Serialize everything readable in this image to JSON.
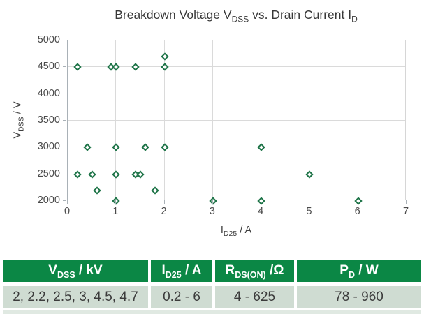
{
  "title": {
    "part1": "Breakdown Voltage V",
    "sub1": "DSS",
    "part2": " vs. Drain Current I",
    "sub2": "D"
  },
  "axes": {
    "y_label": {
      "pre": "V",
      "sub": "DSS",
      "post": " / V"
    },
    "x_label": {
      "pre": "I",
      "sub": "D25",
      "post": " / A"
    }
  },
  "chart_data": {
    "type": "scatter",
    "title": "Breakdown Voltage V_DSS vs. Drain Current I_D",
    "xlabel": "I_D25 / A",
    "ylabel": "V_DSS / V",
    "xlim": [
      0,
      7
    ],
    "ylim": [
      2000,
      5000
    ],
    "xticks": [
      0,
      1,
      2,
      3,
      4,
      5,
      6,
      7
    ],
    "yticks": [
      2000,
      2500,
      3000,
      3500,
      4000,
      4500,
      5000
    ],
    "grid": true,
    "legend": "none",
    "marker": "diamond-outline",
    "points": [
      {
        "x": 0.2,
        "y": 4500
      },
      {
        "x": 0.9,
        "y": 4500
      },
      {
        "x": 1.0,
        "y": 4500
      },
      {
        "x": 1.4,
        "y": 4500
      },
      {
        "x": 2.0,
        "y": 4500
      },
      {
        "x": 2.0,
        "y": 4700
      },
      {
        "x": 0.4,
        "y": 3000
      },
      {
        "x": 1.0,
        "y": 3000
      },
      {
        "x": 1.6,
        "y": 3000
      },
      {
        "x": 2.0,
        "y": 3000
      },
      {
        "x": 4.0,
        "y": 3000
      },
      {
        "x": 0.2,
        "y": 2500
      },
      {
        "x": 0.5,
        "y": 2500
      },
      {
        "x": 1.0,
        "y": 2500
      },
      {
        "x": 1.4,
        "y": 2500
      },
      {
        "x": 1.5,
        "y": 2500
      },
      {
        "x": 5.0,
        "y": 2500
      },
      {
        "x": 0.6,
        "y": 2200
      },
      {
        "x": 1.8,
        "y": 2200
      },
      {
        "x": 1.0,
        "y": 2000
      },
      {
        "x": 3.0,
        "y": 2000
      },
      {
        "x": 4.0,
        "y": 2000
      },
      {
        "x": 6.0,
        "y": 2000
      }
    ]
  },
  "table": {
    "headers": [
      {
        "pre": "V",
        "sub": "DSS",
        "post": " / kV"
      },
      {
        "pre": "I",
        "sub": "D25",
        "post": " / A"
      },
      {
        "pre": "R",
        "sub": "DS(ON)",
        "post": " /Ω"
      },
      {
        "pre": "P",
        "sub": "D",
        "post": " / W"
      }
    ],
    "row": [
      "2, 2.2, 2.5, 3, 4.5, 4.7",
      "0.2 - 6",
      "4 - 625",
      "78 - 960"
    ]
  },
  "colors": {
    "marker_green": "#1d7347",
    "grid_gray": "#dadada",
    "axis_gray": "#a9b1b7",
    "header_bg_green": "#0b8745",
    "header_text": "#ffffff",
    "row_bg": "#cfdcd2",
    "strip_bg": "#e0e9e2"
  }
}
